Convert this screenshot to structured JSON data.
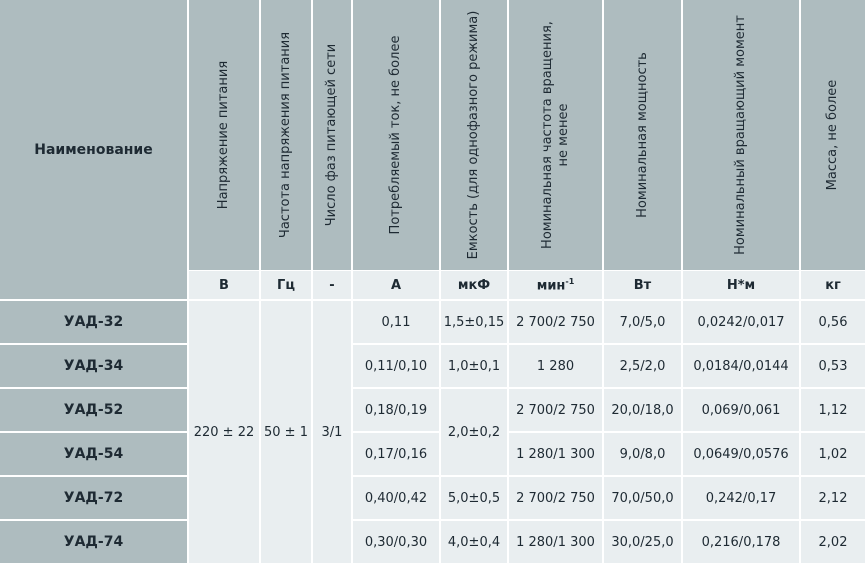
{
  "headers": {
    "name": "Наименование",
    "voltage": "Напряжение питания",
    "frequency": "Частота напряжения питания",
    "phases": "Число фаз питающей сети",
    "current": "Потребляемый ток, не более",
    "capacitance": "Емкость (для однофазного режима)",
    "speed_line1": "Номинальная частота вращения,",
    "speed_line2": "не менее",
    "power": "Номинальная мощность",
    "torque": "Номинальный вращающий момент",
    "mass": "Масса, не более"
  },
  "units": {
    "voltage": "В",
    "frequency": "Гц",
    "phases": "-",
    "current": "А",
    "capacitance": "мкФ",
    "speed": "мин",
    "speed_sup": "-1",
    "power": "Вт",
    "torque": "Н*м",
    "mass": "кг"
  },
  "shared": {
    "voltage": "220 ± 22",
    "frequency": "50 ± 1",
    "phases": "3/1",
    "cap_52_54": "2,0±0,2"
  },
  "rows": [
    {
      "name": "УАД-32",
      "current": "0,11",
      "capacitance": "1,5±0,15",
      "speed": "2 700/2 750",
      "power": "7,0/5,0",
      "torque": "0,0242/0,017",
      "mass": "0,56"
    },
    {
      "name": "УАД-34",
      "current": "0,11/0,10",
      "capacitance": "1,0±0,1",
      "speed": "1 280",
      "power": "2,5/2,0",
      "torque": "0,0184/0,0144",
      "mass": "0,53"
    },
    {
      "name": "УАД-52",
      "current": "0,18/0,19",
      "speed": "2 700/2 750",
      "power": "20,0/18,0",
      "torque": "0,069/0,061",
      "mass": "1,12"
    },
    {
      "name": "УАД-54",
      "current": "0,17/0,16",
      "speed": "1 280/1 300",
      "power": "9,0/8,0",
      "torque": "0,0649/0,0576",
      "mass": "1,02"
    },
    {
      "name": "УАД-72",
      "current": "0,40/0,42",
      "capacitance": "5,0±0,5",
      "speed": "2 700/2 750",
      "power": "70,0/50,0",
      "torque": "0,242/0,17",
      "mass": "2,12"
    },
    {
      "name": "УАД-74",
      "current": "0,30/0,30",
      "capacitance": "4,0±0,4",
      "speed": "1 280/1 300",
      "power": "30,0/25,0",
      "torque": "0,216/0,178",
      "mass": "2,02"
    }
  ]
}
